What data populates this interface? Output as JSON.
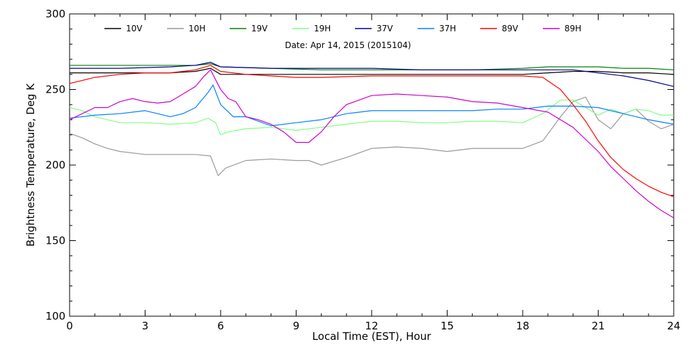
{
  "chart_data": {
    "type": "line",
    "title": "",
    "annotation": "Date: Apr 14, 2015 (2015104)",
    "xlabel": "Local Time (EST), Hour",
    "ylabel": "Brightness Temperature, Deg K",
    "xlim": [
      0,
      24
    ],
    "ylim": [
      100,
      300
    ],
    "xticks": [
      0,
      3,
      6,
      9,
      12,
      15,
      18,
      21,
      24
    ],
    "yticks": [
      100,
      150,
      200,
      250,
      300
    ],
    "grid": false,
    "legend_position": "top",
    "series": [
      {
        "name": "10V",
        "color": "#000000",
        "x": [
          0,
          1,
          2,
          3,
          4,
          5,
          5.6,
          6,
          7,
          8,
          9,
          10,
          12,
          14,
          16,
          18,
          19,
          20,
          21,
          22,
          23,
          24
        ],
        "y": [
          261,
          261,
          261,
          261,
          261,
          262,
          264,
          260,
          260,
          260,
          260,
          260,
          260,
          260,
          260,
          260,
          261,
          262,
          262,
          261,
          261,
          260
        ]
      },
      {
        "name": "10H",
        "color": "#999999",
        "x": [
          0,
          0.5,
          1,
          1.5,
          2,
          3,
          4,
          5,
          5.6,
          5.9,
          6.2,
          7,
          8,
          9,
          9.5,
          10,
          11,
          12,
          13,
          14,
          15,
          16,
          17,
          18,
          18.8,
          19.5,
          20,
          20.5,
          21,
          21.5,
          22,
          22.5,
          23,
          23.5,
          24
        ],
        "y": [
          221,
          218,
          214,
          211,
          209,
          207,
          207,
          207,
          206,
          193,
          198,
          203,
          204,
          203,
          203,
          200,
          205,
          211,
          212,
          211,
          209,
          211,
          211,
          211,
          216,
          232,
          242,
          245,
          230,
          224,
          234,
          237,
          229,
          224,
          227
        ]
      },
      {
        "name": "19V",
        "color": "#008000",
        "x": [
          0,
          2,
          4,
          5,
          5.6,
          6,
          8,
          10,
          12,
          14,
          16,
          18,
          19,
          20,
          21,
          22,
          23,
          24
        ],
        "y": [
          266,
          266,
          266,
          266,
          267,
          265,
          264,
          263,
          263,
          263,
          263,
          264,
          265,
          265,
          265,
          264,
          264,
          263
        ]
      },
      {
        "name": "19H",
        "color": "#80ff80",
        "x": [
          0,
          0.5,
          1,
          2,
          3,
          4,
          5,
          5.5,
          5.8,
          6,
          6.3,
          7,
          8,
          9,
          10,
          11,
          12,
          13,
          14,
          15,
          16,
          17,
          18,
          18.8,
          19.5,
          20,
          20.5,
          21,
          21.5,
          22,
          22.5,
          23,
          23.5,
          24
        ],
        "y": [
          238,
          236,
          232,
          228,
          228,
          227,
          228,
          231,
          228,
          220,
          222,
          224,
          225,
          223,
          225,
          227,
          229,
          229,
          228,
          228,
          229,
          229,
          228,
          234,
          243,
          243,
          238,
          233,
          237,
          234,
          237,
          236,
          233,
          233
        ]
      },
      {
        "name": "37V",
        "color": "#00008b",
        "x": [
          0,
          2,
          4,
          5,
          5.6,
          6,
          8,
          10,
          12,
          14,
          16,
          18,
          19,
          20,
          21,
          22,
          23,
          24
        ],
        "y": [
          264,
          264,
          265,
          266,
          268,
          265,
          264,
          264,
          264,
          263,
          263,
          263,
          263,
          263,
          261,
          259,
          256,
          252
        ]
      },
      {
        "name": "37H",
        "color": "#0080ff",
        "x": [
          0,
          1,
          2,
          3,
          4,
          4.5,
          5,
          5.3,
          5.5,
          5.7,
          6,
          6.5,
          7,
          7.5,
          8,
          9,
          10,
          11,
          12,
          13,
          14,
          15,
          16,
          17,
          18,
          19,
          20,
          21,
          22,
          23,
          24
        ],
        "y": [
          231,
          233,
          234,
          236,
          232,
          234,
          238,
          244,
          248,
          253,
          240,
          232,
          232,
          229,
          226,
          228,
          230,
          234,
          236,
          236,
          236,
          236,
          236,
          237,
          237,
          239,
          239,
          238,
          234,
          230,
          227
        ]
      },
      {
        "name": "89V",
        "color": "#ff0000",
        "x": [
          0,
          1,
          2,
          3,
          4,
          5,
          5.6,
          6,
          7,
          8,
          9,
          10,
          12,
          14,
          16,
          18,
          18.8,
          19.5,
          20,
          20.5,
          21,
          21.5,
          22,
          22.5,
          23,
          23.5,
          24
        ],
        "y": [
          254,
          258,
          260,
          261,
          261,
          263,
          266,
          262,
          260,
          259,
          258,
          258,
          259,
          259,
          259,
          259,
          258,
          250,
          240,
          229,
          216,
          205,
          197,
          191,
          186,
          182,
          179
        ]
      },
      {
        "name": "89H",
        "color": "#cc00cc",
        "x": [
          0,
          1,
          1.5,
          2,
          2.5,
          3,
          3.5,
          4,
          4.5,
          5,
          5.3,
          5.6,
          6,
          6.3,
          6.6,
          7,
          7.5,
          8,
          8.5,
          9,
          9.5,
          10,
          10.5,
          11,
          12,
          13,
          14,
          15,
          16,
          17,
          18,
          19,
          20,
          21,
          21.5,
          22,
          22.5,
          23,
          23.5,
          24
        ],
        "y": [
          230,
          238,
          238,
          242,
          244,
          242,
          241,
          242,
          247,
          252,
          258,
          263,
          250,
          244,
          242,
          232,
          230,
          227,
          222,
          215,
          215,
          222,
          232,
          240,
          246,
          247,
          246,
          245,
          242,
          241,
          238,
          235,
          225,
          209,
          199,
          191,
          183,
          176,
          170,
          165
        ]
      }
    ]
  }
}
